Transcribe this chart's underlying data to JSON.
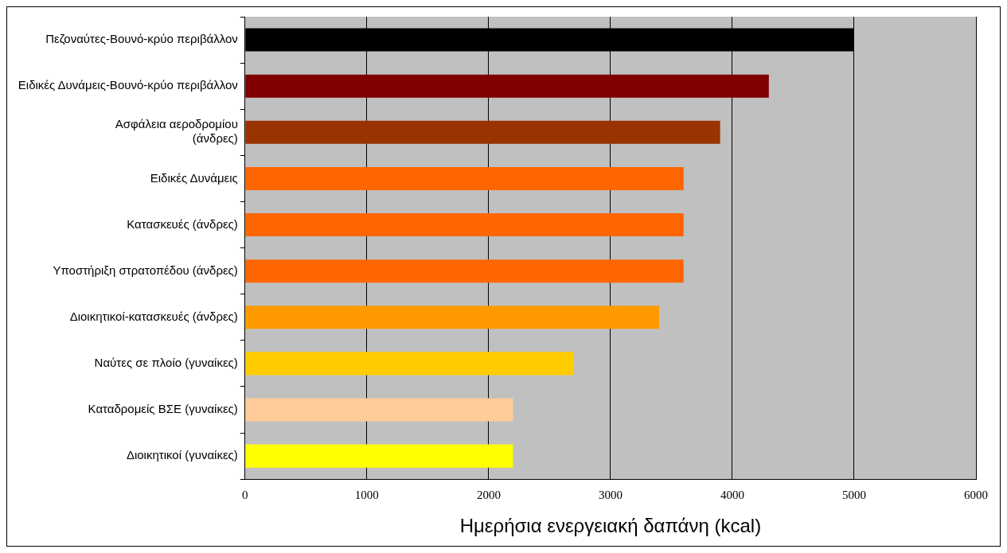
{
  "chart_data": {
    "type": "bar",
    "orientation": "horizontal",
    "xlabel": "Ημερήσια ενεργειακή δαπάνη (kcal)",
    "categories": [
      "Πεζοναύτες-Βουνό-κρύο περιβάλλον",
      "Ειδικές Δυνάμεις-Βουνό-κρύο περιβάλλον",
      "Ασφάλεια αεροδρομίου\n(άνδρες)",
      "Ειδικές Δυνάμεις",
      "Κατασκευές (άνδρες)",
      "Υποστήριξη στρατοπέδου (άνδρες)",
      "Διοικητικοί-κατασκευές (άνδρες)",
      "Ναύτες σε πλοίο (γυναίκες)",
      "Καταδρομείς ΒΣΕ (γυναίκες)",
      "Διοικητικοί (γυναίκες)"
    ],
    "values": [
      5000,
      4300,
      3900,
      3600,
      3600,
      3600,
      3400,
      2700,
      2200,
      2200
    ],
    "colors": [
      "#000000",
      "#800000",
      "#993300",
      "#ff6600",
      "#ff6600",
      "#ff6600",
      "#ff9900",
      "#ffcc00",
      "#ffcc99",
      "#ffff00"
    ],
    "xlim": [
      0,
      6000
    ],
    "xticks": [
      0,
      1000,
      2000,
      3000,
      4000,
      5000,
      6000
    ],
    "grid": "x",
    "legend": false
  }
}
